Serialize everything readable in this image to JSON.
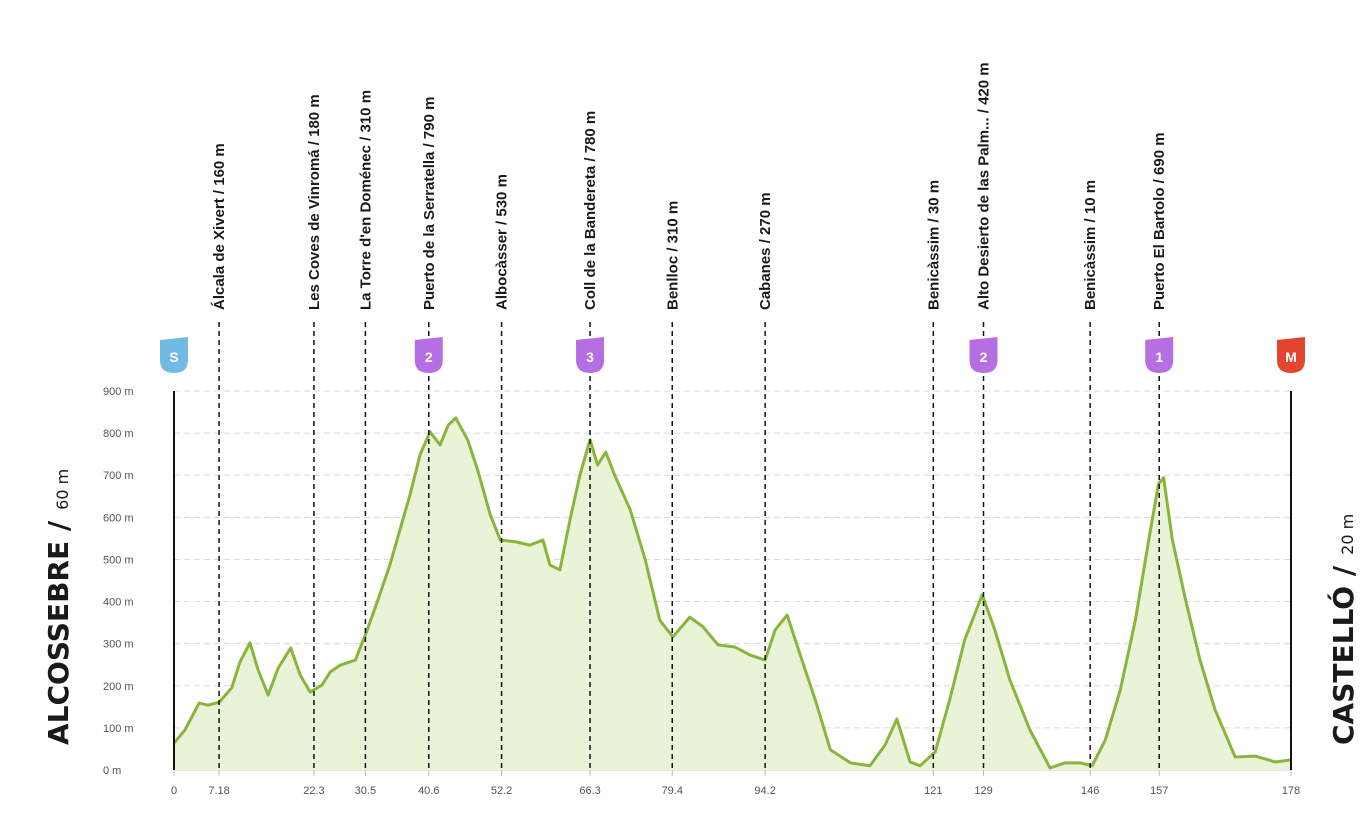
{
  "chart_data": {
    "type": "area",
    "x": [
      0,
      1.75,
      4,
      5.4,
      7.2,
      9.2,
      10.5,
      12.1,
      13.4,
      15,
      16.6,
      18.6,
      20.1,
      21.7,
      23.6,
      24.9,
      26.5,
      28.9,
      30.8,
      32.5,
      34.4,
      36,
      37.6,
      39.2,
      40.8,
      42.4,
      43.7,
      44.9,
      46.8,
      48.4,
      50.4,
      52,
      54.4,
      56.7,
      58.8,
      59.9,
      61.5,
      63.1,
      64.7,
      66.3,
      67.5,
      68.8,
      70.2,
      72.7,
      75.1,
      77.4,
      79.5,
      82.2,
      84.3,
      86.7,
      89.4,
      91.8,
      94.2,
      95.8,
      97.7,
      99.8,
      102.2,
      104.6,
      107.8,
      110.9,
      113.3,
      115.2,
      117.3,
      118.9,
      121.3,
      123.6,
      126,
      128.8,
      130.8,
      133.2,
      136.4,
      139.6,
      142,
      144.4,
      146.3,
      148.4,
      150.8,
      153.2,
      155.6,
      156.9,
      157.7,
      159.1,
      161.2,
      163.5,
      165.9,
      169.1,
      172.3,
      175.5,
      178
    ],
    "values": [
      64,
      95,
      159,
      154,
      161,
      195,
      256,
      302,
      238,
      178,
      242,
      290,
      226,
      185,
      202,
      233,
      249,
      261,
      333,
      404,
      487,
      570,
      653,
      748,
      803,
      772,
      819,
      836,
      784,
      712,
      606,
      546,
      542,
      534,
      546,
      487,
      475,
      594,
      701,
      784,
      724,
      755,
      701,
      618,
      499,
      356,
      316,
      363,
      340,
      297,
      292,
      273,
      261,
      333,
      368,
      273,
      166,
      48,
      17,
      10,
      59,
      121,
      19,
      10,
      43,
      166,
      309,
      416,
      333,
      214,
      95,
      5,
      17,
      17,
      10,
      71,
      190,
      356,
      570,
      680,
      694,
      546,
      404,
      261,
      143,
      31,
      33,
      19,
      24
    ],
    "color": "#8ab53c",
    "fill": "#e9f3d8",
    "xlim": [
      0,
      178
    ],
    "ylim": [
      0,
      900
    ],
    "yticks": [
      {
        "value": 0,
        "label": "0 m"
      },
      {
        "value": 100,
        "label": "100 m"
      },
      {
        "value": 200,
        "label": "200 m"
      },
      {
        "value": 300,
        "label": "300 m"
      },
      {
        "value": 400,
        "label": "400 m"
      },
      {
        "value": 500,
        "label": "500 m"
      },
      {
        "value": 600,
        "label": "600 m"
      },
      {
        "value": 700,
        "label": "700 m"
      },
      {
        "value": 800,
        "label": "800 m"
      },
      {
        "value": 900,
        "label": "900 m"
      }
    ],
    "xticks": [
      0,
      7.18,
      22.3,
      30.5,
      40.6,
      52.2,
      66.3,
      79.4,
      94.2,
      121,
      129,
      146,
      157,
      178
    ],
    "grid": true,
    "waypoints": [
      {
        "x": 7.18,
        "label": "Álcala de Xivert / 160 m"
      },
      {
        "x": 22.3,
        "label": "Les Coves de Vinromá / 180 m"
      },
      {
        "x": 30.5,
        "label": "La Torre d'en Doménec / 310 m"
      },
      {
        "x": 40.6,
        "label": "Puerto de la Serratella / 790 m"
      },
      {
        "x": 52.2,
        "label": "Albocàsser / 530 m"
      },
      {
        "x": 66.3,
        "label": "Coll de la Bandereta / 780 m"
      },
      {
        "x": 79.4,
        "label": "Benlloc / 310 m"
      },
      {
        "x": 94.2,
        "label": "Cabanes / 270 m"
      },
      {
        "x": 121,
        "label": "Benicàssim / 30 m"
      },
      {
        "x": 129,
        "label": "Alto Desierto de las Palm... / 420 m"
      },
      {
        "x": 146,
        "label": "Benicàssim / 10 m"
      },
      {
        "x": 157,
        "label": "Puerto El Bartolo / 690 m"
      }
    ],
    "climbs": [
      {
        "x": 40.6,
        "category": "2"
      },
      {
        "x": 66.3,
        "category": "3"
      },
      {
        "x": 129,
        "category": "2"
      },
      {
        "x": 157,
        "category": "1"
      }
    ],
    "start": {
      "badge": "S",
      "name": "ALCOSSEBRE /",
      "altitude": "60 m"
    },
    "finish": {
      "badge": "M",
      "name": "CASTELLÓ /",
      "altitude": "20 m"
    }
  }
}
